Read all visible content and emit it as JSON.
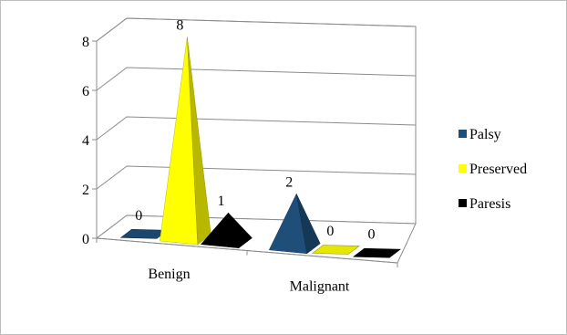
{
  "chart_data": {
    "type": "bar",
    "style": "3d-pyramid",
    "categories": [
      "Benign",
      "Malignant"
    ],
    "series": [
      {
        "name": "Palsy",
        "color": "#1f4e79",
        "values": [
          0,
          2
        ]
      },
      {
        "name": "Preserved",
        "color": "#ffff00",
        "values": [
          8,
          0
        ]
      },
      {
        "name": "Paresis",
        "color": "#000000",
        "values": [
          1,
          0
        ]
      }
    ],
    "data_labels": true,
    "yticks": [
      "0",
      "2",
      "4",
      "6",
      "8"
    ],
    "ylim": [
      0,
      8
    ],
    "grid": true,
    "legend": "right"
  }
}
